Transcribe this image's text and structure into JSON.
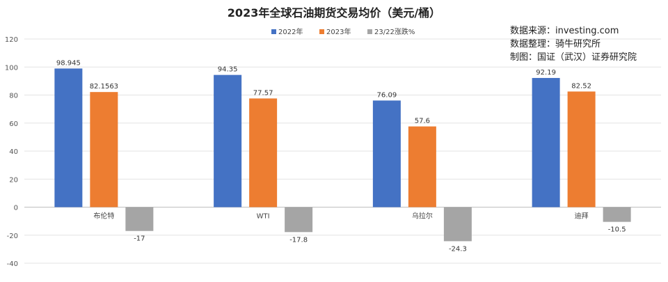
{
  "chart_data": {
    "type": "bar",
    "title": "2023年全球石油期货交易均价（美元/桶）",
    "categories": [
      "布伦特",
      "WTI",
      "乌拉尔",
      "迪拜"
    ],
    "series": [
      {
        "name": "2022年",
        "values": [
          98.945,
          94.35,
          76.09,
          92.19
        ],
        "labels": [
          "98.945",
          "94.35",
          "76.09",
          "92.19"
        ],
        "color": "#4472C4"
      },
      {
        "name": "2023年",
        "values": [
          82.1563,
          77.57,
          57.6,
          82.52
        ],
        "labels": [
          "82.1563",
          "77.57",
          "57.6",
          "82.52"
        ],
        "color": "#ED7D31"
      },
      {
        "name": "23/22涨跌%",
        "values": [
          -17,
          -17.8,
          -24.3,
          -10.5
        ],
        "labels": [
          "-17",
          "-17.8",
          "-24.3",
          "-10.5"
        ],
        "color": "#A5A5A5"
      }
    ],
    "yticks": [
      "120",
      "100",
      "80",
      "60",
      "40",
      "20",
      "0",
      "-20",
      "-40"
    ],
    "ylim": [
      -40,
      120
    ],
    "grid": true,
    "legend_position": "top-center"
  },
  "source": {
    "line1": "数据来源：investing.com",
    "line2": "数据整理：骑牛研究所",
    "line3": "制图：国证（武汉）证券研究院"
  }
}
